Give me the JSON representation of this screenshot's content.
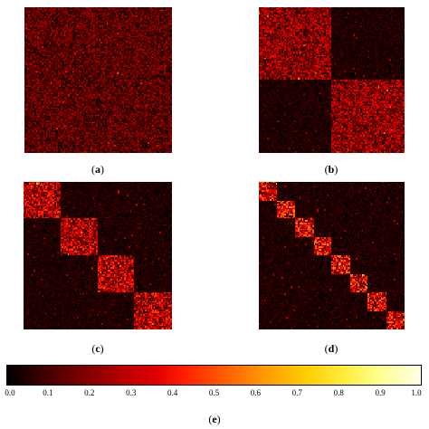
{
  "chart_data": [
    {
      "type": "heatmap",
      "panel_label": "a",
      "block_count": 1,
      "colormap": "hot",
      "vmin": 0.0,
      "vmax": 1.0
    },
    {
      "type": "heatmap",
      "panel_label": "b",
      "block_count": 2,
      "colormap": "hot",
      "vmin": 0.0,
      "vmax": 1.0
    },
    {
      "type": "heatmap",
      "panel_label": "c",
      "block_count": 4,
      "colormap": "hot",
      "vmin": 0.0,
      "vmax": 1.0
    },
    {
      "type": "heatmap",
      "panel_label": "d",
      "block_count": 8,
      "colormap": "hot",
      "vmin": 0.0,
      "vmax": 1.0
    }
  ],
  "colorbar": {
    "label": "e",
    "colormap": "hot",
    "ticks": [
      "0.0",
      "0.1",
      "0.2",
      "0.3",
      "0.4",
      "0.5",
      "0.6",
      "0.7",
      "0.8",
      "0.9",
      "1.0"
    ]
  },
  "captions": {
    "a": "a",
    "b": "b",
    "c": "c",
    "d": "d",
    "e": "e"
  }
}
